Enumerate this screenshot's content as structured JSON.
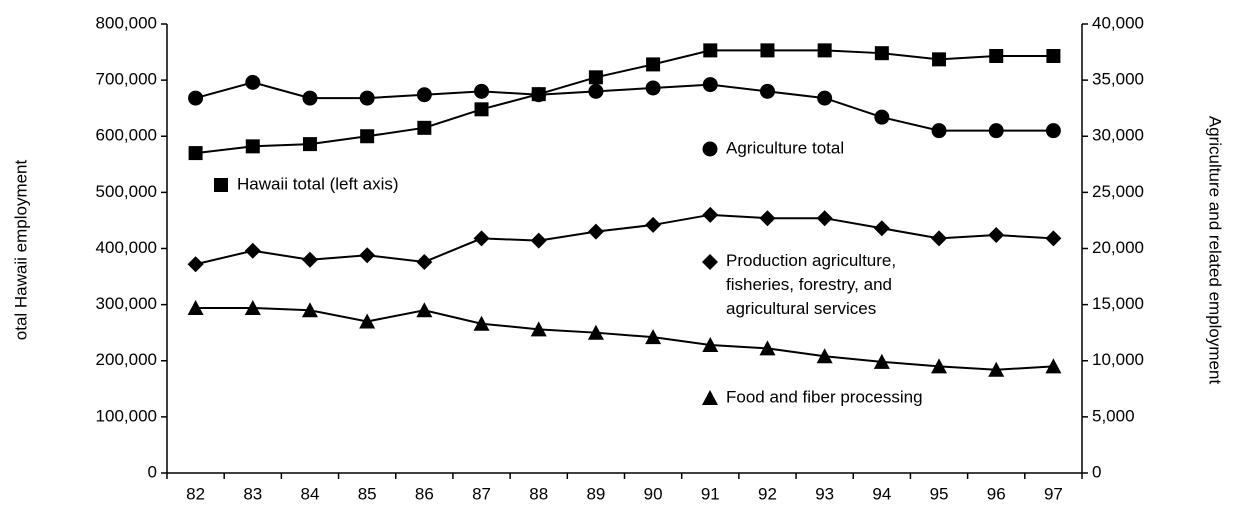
{
  "chart_data": {
    "type": "line",
    "y_label": "otal Hawaii employment",
    "y2_label": "Agriculture and related employment",
    "categories": [
      "82",
      "83",
      "84",
      "85",
      "86",
      "87",
      "88",
      "89",
      "90",
      "91",
      "92",
      "93",
      "94",
      "95",
      "96",
      "97"
    ],
    "series": [
      {
        "name": "Hawaii total (left axis)",
        "color": "#000000",
        "marker": "square",
        "values": [
          570000,
          582000,
          586000,
          600000,
          615000,
          648000,
          675000,
          705000,
          728000,
          753000,
          753000,
          753000,
          748000,
          737000,
          743000,
          743000
        ]
      },
      {
        "name": "Agriculture total",
        "color": "#000000",
        "marker": "circle",
        "axis": "y2",
        "values": [
          33400,
          34800,
          33400,
          33400,
          33700,
          34000,
          33700,
          34000,
          34300,
          34600,
          34000,
          33400,
          31700,
          30500,
          30500,
          30500
        ]
      },
      {
        "name": "Production agriculture, fisheries, forestry, and agricultural services",
        "color": "#000000",
        "marker": "diamond",
        "axis": "y2",
        "values": [
          18600,
          19800,
          19000,
          19400,
          18800,
          20900,
          20700,
          21500,
          22100,
          23000,
          22700,
          22700,
          21800,
          20900,
          21200,
          20900
        ]
      },
      {
        "name": "Food and fiber processing",
        "color": "#000000",
        "marker": "triangle",
        "axis": "y2",
        "values": [
          14700,
          14700,
          14500,
          13500,
          14500,
          13300,
          12800,
          12500,
          12100,
          11400,
          11100,
          10400,
          9900,
          9500,
          9200,
          9500
        ]
      }
    ],
    "ylim": [
      0,
      800000
    ],
    "yticks": [
      0,
      {
        "value": 100000,
        "label": "100,000"
      },
      {
        "value": 200000,
        "label": "200,000"
      },
      {
        "value": 300000,
        "label": "300,000"
      },
      {
        "value": 400000,
        "label": "400,000"
      },
      {
        "value": 500000,
        "label": "500,000"
      },
      {
        "value": 600000,
        "label": "600,000"
      },
      {
        "value": 700000,
        "label": "700,000"
      },
      {
        "value": 800000,
        "label": "800,000"
      }
    ],
    "y2lim": [
      0,
      40000
    ],
    "y2ticks": [
      0,
      {
        "value": 5000,
        "label": "5,000"
      },
      {
        "value": 10000,
        "label": "10,000"
      },
      {
        "value": 15000,
        "label": "15,000"
      },
      {
        "value": 20000,
        "label": "20,000"
      },
      {
        "value": 25000,
        "label": "25,000"
      },
      {
        "value": 30000,
        "label": "30,000"
      },
      {
        "value": 35000,
        "label": "35,000"
      },
      {
        "value": 40000,
        "label": "40,000"
      }
    ],
    "grid": false
  }
}
